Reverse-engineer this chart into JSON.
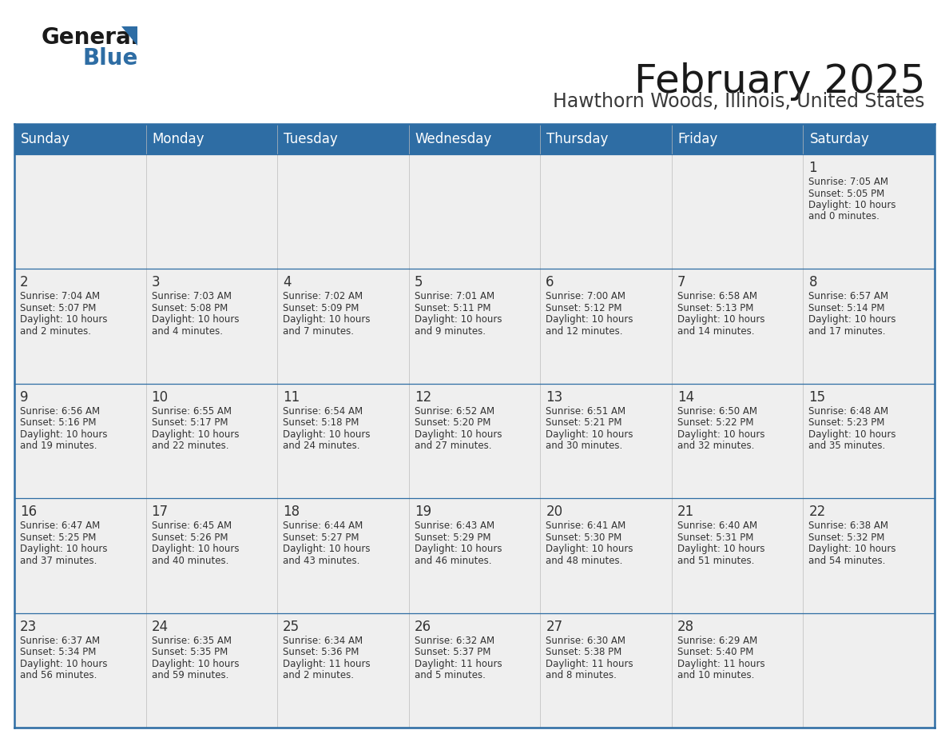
{
  "title": "February 2025",
  "subtitle": "Hawthorn Woods, Illinois, United States",
  "header_bg": "#2E6DA4",
  "header_text_color": "#FFFFFF",
  "cell_bg": "#EFEFEF",
  "border_color": "#2E6DA4",
  "row_line_color": "#2E6DA4",
  "text_color": "#333333",
  "day_headers": [
    "Sunday",
    "Monday",
    "Tuesday",
    "Wednesday",
    "Thursday",
    "Friday",
    "Saturday"
  ],
  "days": [
    {
      "day": 1,
      "col": 6,
      "row": 0,
      "sunrise": "7:05 AM",
      "sunset": "5:05 PM",
      "daylight_hours": 10,
      "daylight_minutes": 0
    },
    {
      "day": 2,
      "col": 0,
      "row": 1,
      "sunrise": "7:04 AM",
      "sunset": "5:07 PM",
      "daylight_hours": 10,
      "daylight_minutes": 2
    },
    {
      "day": 3,
      "col": 1,
      "row": 1,
      "sunrise": "7:03 AM",
      "sunset": "5:08 PM",
      "daylight_hours": 10,
      "daylight_minutes": 4
    },
    {
      "day": 4,
      "col": 2,
      "row": 1,
      "sunrise": "7:02 AM",
      "sunset": "5:09 PM",
      "daylight_hours": 10,
      "daylight_minutes": 7
    },
    {
      "day": 5,
      "col": 3,
      "row": 1,
      "sunrise": "7:01 AM",
      "sunset": "5:11 PM",
      "daylight_hours": 10,
      "daylight_minutes": 9
    },
    {
      "day": 6,
      "col": 4,
      "row": 1,
      "sunrise": "7:00 AM",
      "sunset": "5:12 PM",
      "daylight_hours": 10,
      "daylight_minutes": 12
    },
    {
      "day": 7,
      "col": 5,
      "row": 1,
      "sunrise": "6:58 AM",
      "sunset": "5:13 PM",
      "daylight_hours": 10,
      "daylight_minutes": 14
    },
    {
      "day": 8,
      "col": 6,
      "row": 1,
      "sunrise": "6:57 AM",
      "sunset": "5:14 PM",
      "daylight_hours": 10,
      "daylight_minutes": 17
    },
    {
      "day": 9,
      "col": 0,
      "row": 2,
      "sunrise": "6:56 AM",
      "sunset": "5:16 PM",
      "daylight_hours": 10,
      "daylight_minutes": 19
    },
    {
      "day": 10,
      "col": 1,
      "row": 2,
      "sunrise": "6:55 AM",
      "sunset": "5:17 PM",
      "daylight_hours": 10,
      "daylight_minutes": 22
    },
    {
      "day": 11,
      "col": 2,
      "row": 2,
      "sunrise": "6:54 AM",
      "sunset": "5:18 PM",
      "daylight_hours": 10,
      "daylight_minutes": 24
    },
    {
      "day": 12,
      "col": 3,
      "row": 2,
      "sunrise": "6:52 AM",
      "sunset": "5:20 PM",
      "daylight_hours": 10,
      "daylight_minutes": 27
    },
    {
      "day": 13,
      "col": 4,
      "row": 2,
      "sunrise": "6:51 AM",
      "sunset": "5:21 PM",
      "daylight_hours": 10,
      "daylight_minutes": 30
    },
    {
      "day": 14,
      "col": 5,
      "row": 2,
      "sunrise": "6:50 AM",
      "sunset": "5:22 PM",
      "daylight_hours": 10,
      "daylight_minutes": 32
    },
    {
      "day": 15,
      "col": 6,
      "row": 2,
      "sunrise": "6:48 AM",
      "sunset": "5:23 PM",
      "daylight_hours": 10,
      "daylight_minutes": 35
    },
    {
      "day": 16,
      "col": 0,
      "row": 3,
      "sunrise": "6:47 AM",
      "sunset": "5:25 PM",
      "daylight_hours": 10,
      "daylight_minutes": 37
    },
    {
      "day": 17,
      "col": 1,
      "row": 3,
      "sunrise": "6:45 AM",
      "sunset": "5:26 PM",
      "daylight_hours": 10,
      "daylight_minutes": 40
    },
    {
      "day": 18,
      "col": 2,
      "row": 3,
      "sunrise": "6:44 AM",
      "sunset": "5:27 PM",
      "daylight_hours": 10,
      "daylight_minutes": 43
    },
    {
      "day": 19,
      "col": 3,
      "row": 3,
      "sunrise": "6:43 AM",
      "sunset": "5:29 PM",
      "daylight_hours": 10,
      "daylight_minutes": 46
    },
    {
      "day": 20,
      "col": 4,
      "row": 3,
      "sunrise": "6:41 AM",
      "sunset": "5:30 PM",
      "daylight_hours": 10,
      "daylight_minutes": 48
    },
    {
      "day": 21,
      "col": 5,
      "row": 3,
      "sunrise": "6:40 AM",
      "sunset": "5:31 PM",
      "daylight_hours": 10,
      "daylight_minutes": 51
    },
    {
      "day": 22,
      "col": 6,
      "row": 3,
      "sunrise": "6:38 AM",
      "sunset": "5:32 PM",
      "daylight_hours": 10,
      "daylight_minutes": 54
    },
    {
      "day": 23,
      "col": 0,
      "row": 4,
      "sunrise": "6:37 AM",
      "sunset": "5:34 PM",
      "daylight_hours": 10,
      "daylight_minutes": 56
    },
    {
      "day": 24,
      "col": 1,
      "row": 4,
      "sunrise": "6:35 AM",
      "sunset": "5:35 PM",
      "daylight_hours": 10,
      "daylight_minutes": 59
    },
    {
      "day": 25,
      "col": 2,
      "row": 4,
      "sunrise": "6:34 AM",
      "sunset": "5:36 PM",
      "daylight_hours": 11,
      "daylight_minutes": 2
    },
    {
      "day": 26,
      "col": 3,
      "row": 4,
      "sunrise": "6:32 AM",
      "sunset": "5:37 PM",
      "daylight_hours": 11,
      "daylight_minutes": 5
    },
    {
      "day": 27,
      "col": 4,
      "row": 4,
      "sunrise": "6:30 AM",
      "sunset": "5:38 PM",
      "daylight_hours": 11,
      "daylight_minutes": 8
    },
    {
      "day": 28,
      "col": 5,
      "row": 4,
      "sunrise": "6:29 AM",
      "sunset": "5:40 PM",
      "daylight_hours": 11,
      "daylight_minutes": 10
    }
  ],
  "logo_text1": "General",
  "logo_text2": "Blue",
  "logo_color1": "#1a1a1a",
  "logo_color2": "#2E6DA4",
  "logo_triangle_color": "#2E6DA4",
  "title_fontsize": 36,
  "subtitle_fontsize": 17,
  "header_fontsize": 12,
  "day_num_fontsize": 12,
  "cell_text_fontsize": 8.5
}
